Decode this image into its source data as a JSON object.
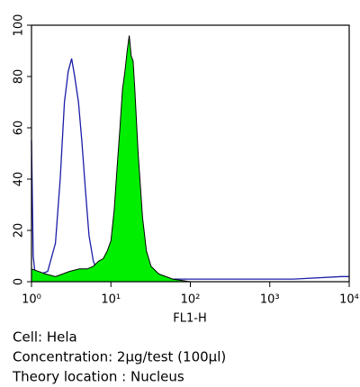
{
  "chart_data": {
    "type": "histogram-overlay",
    "xlabel": "FL1-H",
    "xlog": true,
    "xlim": [
      1,
      10000
    ],
    "xticks": [
      {
        "value": 1,
        "label": "10⁰"
      },
      {
        "value": 10,
        "label": "10¹"
      },
      {
        "value": 100,
        "label": "10²"
      },
      {
        "value": 1000,
        "label": "10³"
      },
      {
        "value": 10000,
        "label": "10⁴"
      }
    ],
    "ylim": [
      0,
      100
    ],
    "yticks": [
      0,
      20,
      40,
      60,
      80,
      100
    ],
    "series": [
      {
        "color": "#1c1ca8",
        "filled": false,
        "x": [
          1.0,
          1.05,
          1.1,
          1.3,
          1.6,
          2.0,
          2.3,
          2.6,
          2.9,
          3.2,
          3.5,
          3.9,
          4.3,
          4.8,
          5.3,
          6,
          7,
          9,
          12,
          20,
          50,
          100,
          500,
          2000,
          8000,
          10000
        ],
        "values": [
          55,
          10,
          4,
          3,
          4,
          15,
          40,
          70,
          82,
          87,
          80,
          70,
          55,
          35,
          18,
          8,
          3,
          2,
          1,
          1,
          1,
          1,
          1,
          1,
          2,
          2
        ]
      },
      {
        "color": "#00ee00",
        "filled": true,
        "x": [
          1.0,
          1.5,
          2,
          3,
          4,
          5,
          6,
          7,
          8,
          9,
          10,
          11,
          12,
          13,
          14,
          15,
          16,
          17,
          18,
          19,
          20,
          22,
          25,
          28,
          32,
          40,
          60,
          100,
          1000,
          10000
        ],
        "values": [
          5,
          3,
          2,
          4,
          5,
          5,
          6,
          8,
          9,
          12,
          16,
          28,
          45,
          60,
          75,
          82,
          90,
          96,
          88,
          86,
          75,
          50,
          25,
          12,
          6,
          3,
          1,
          0,
          0,
          0
        ]
      }
    ]
  },
  "caption": [
    "Cell: Hela",
    "Concentration: 2μg/test (100μl)",
    "Theory location : Nucleus"
  ]
}
